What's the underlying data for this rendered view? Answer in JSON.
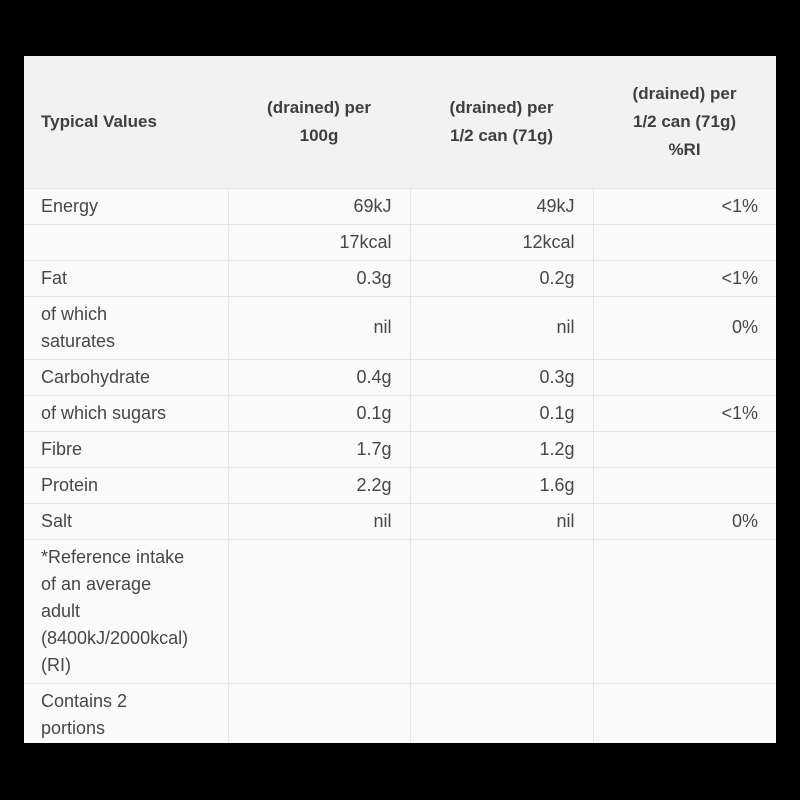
{
  "colors": {
    "backdrop": "#000000",
    "card_background": "#fafafa",
    "header_background": "#f2f2f2",
    "row_border": "#e6e6e6",
    "text": "#474747"
  },
  "table": {
    "columns": [
      {
        "label": "Typical Values"
      },
      {
        "label": "(drained) per\n100g"
      },
      {
        "label": "(drained) per\n1/2 can (71g)"
      },
      {
        "label": "(drained) per\n1/2 can (71g)\n%RI"
      }
    ],
    "rows": [
      [
        "Energy",
        "69kJ",
        "49kJ",
        "<1%"
      ],
      [
        "",
        "17kcal",
        "12kcal",
        ""
      ],
      [
        "Fat",
        "0.3g",
        "0.2g",
        "<1%"
      ],
      [
        "of which\nsaturates",
        "nil",
        "nil",
        "0%"
      ],
      [
        "Carbohydrate",
        "0.4g",
        "0.3g",
        ""
      ],
      [
        "of which sugars",
        "0.1g",
        "0.1g",
        "<1%"
      ],
      [
        "Fibre",
        "1.7g",
        "1.2g",
        ""
      ],
      [
        "Protein",
        "2.2g",
        "1.6g",
        ""
      ],
      [
        "Salt",
        "nil",
        "nil",
        "0%"
      ],
      [
        "*Reference intake\nof an average\nadult\n(8400kJ/2000kcal)\n(RI)",
        "",
        "",
        ""
      ],
      [
        "Contains 2\nportions",
        "",
        "",
        ""
      ]
    ]
  }
}
